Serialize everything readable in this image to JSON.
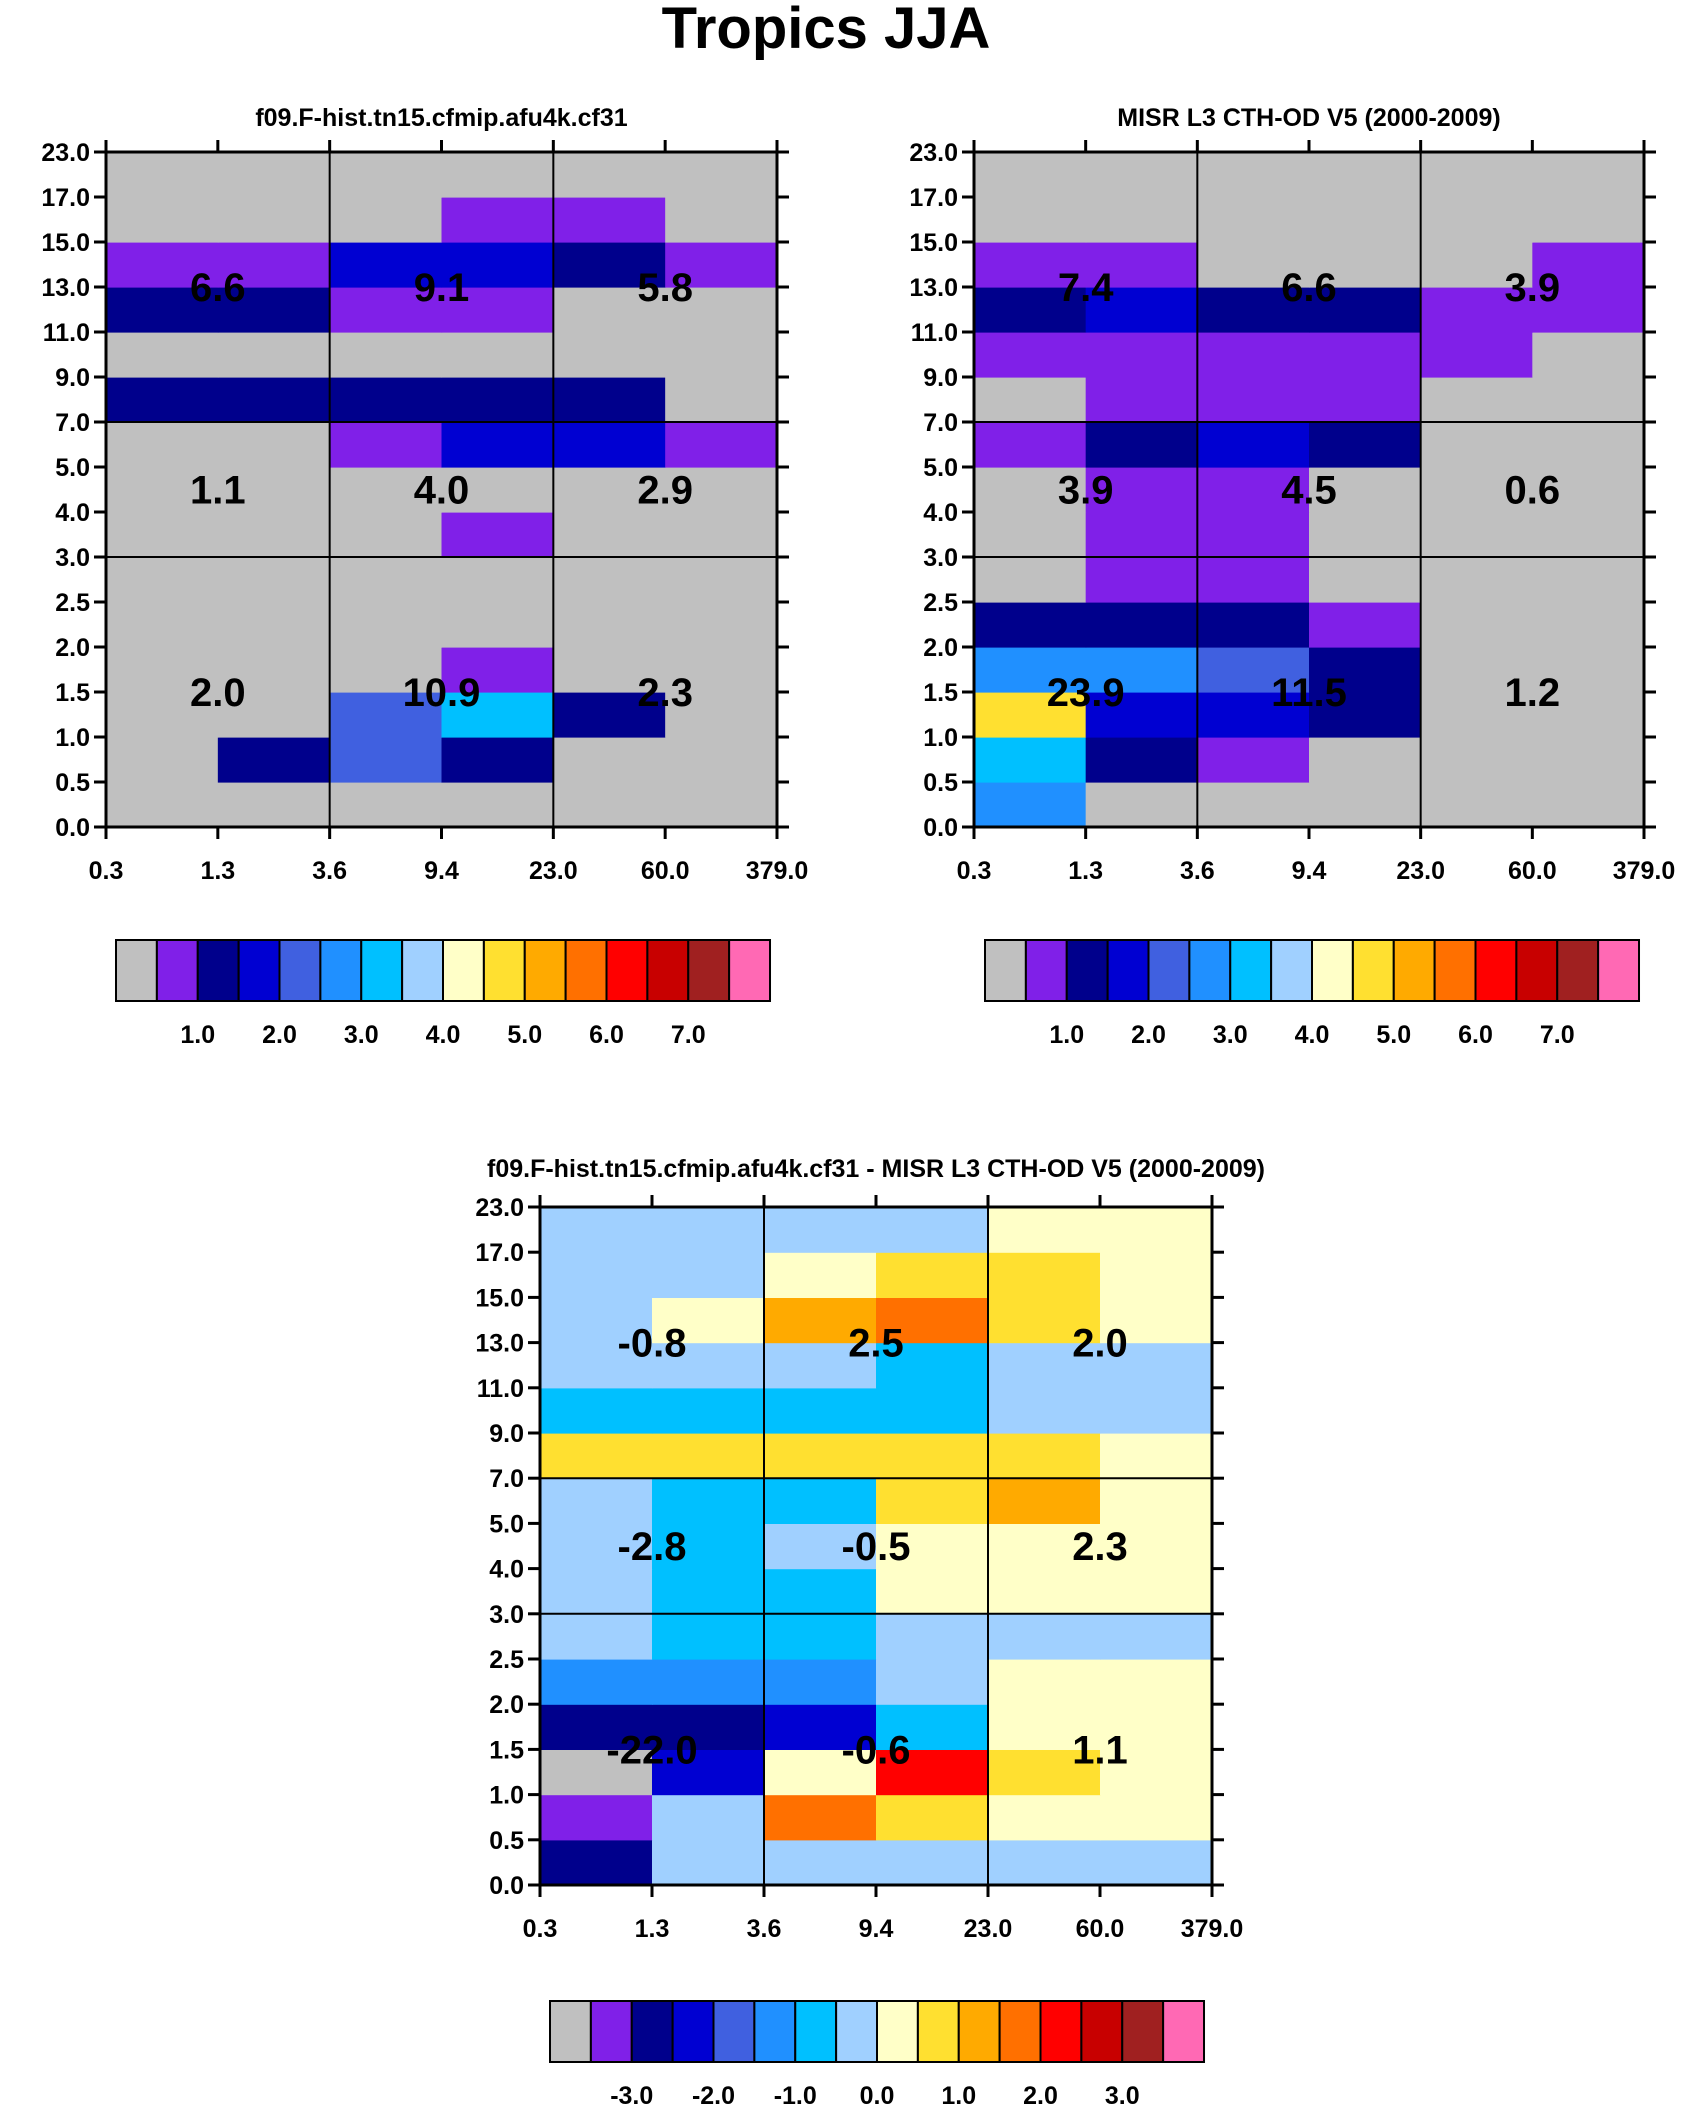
{
  "figure_title": "Tropics JJA",
  "colors": {
    "scale": [
      "#c0c0c0",
      "#8020e8",
      "#00008c",
      "#0000d2",
      "#4060e0",
      "#2090ff",
      "#00c0ff",
      "#a0d0ff",
      "#ffffc8",
      "#ffe030",
      "#ffaa00",
      "#ff7000",
      "#ff0000",
      "#c80000",
      "#a02020",
      "#ff69b4"
    ]
  },
  "chart_data": [
    {
      "type": "heatmap",
      "id": "model",
      "title": "f09.F-hist.tn15.cfmip.afu4k.cf31",
      "x_tick_labels": [
        "0.3",
        "1.3",
        "3.6",
        "9.4",
        "23.0",
        "60.0",
        "379.0"
      ],
      "y_tick_labels": [
        "0.0",
        "0.5",
        "1.0",
        "1.5",
        "2.0",
        "2.5",
        "3.0",
        "4.0",
        "5.0",
        "7.0",
        "9.0",
        "11.0",
        "13.0",
        "15.0",
        "17.0",
        "23.0"
      ],
      "cells_bottom_to_top": [
        [
          0,
          0,
          0,
          0,
          0,
          0
        ],
        [
          0,
          2,
          4,
          2,
          0,
          0
        ],
        [
          0,
          0,
          4,
          6,
          2,
          0
        ],
        [
          0,
          0,
          0,
          1,
          0,
          0
        ],
        [
          0,
          0,
          0,
          0,
          0,
          0
        ],
        [
          0,
          0,
          0,
          0,
          0,
          0
        ],
        [
          0,
          0,
          0,
          1,
          0,
          0
        ],
        [
          0,
          0,
          0,
          0,
          0,
          0
        ],
        [
          0,
          0,
          1,
          3,
          3,
          1
        ],
        [
          2,
          2,
          2,
          2,
          2,
          0
        ],
        [
          0,
          0,
          0,
          0,
          0,
          0
        ],
        [
          2,
          2,
          1,
          1,
          0,
          0
        ],
        [
          1,
          1,
          3,
          3,
          2,
          1
        ],
        [
          0,
          0,
          0,
          1,
          1,
          0
        ],
        [
          0,
          0,
          0,
          0,
          0,
          0
        ]
      ],
      "block_labels": {
        "top": [
          "6.6",
          "9.1",
          "5.8"
        ],
        "middle": [
          "1.1",
          "4.0",
          "2.9"
        ],
        "bottom": [
          "2.0",
          "10.9",
          "2.3"
        ]
      },
      "colorbar": {
        "labels": [
          "1.0",
          "2.0",
          "3.0",
          "4.0",
          "5.0",
          "6.0",
          "7.0"
        ]
      }
    },
    {
      "type": "heatmap",
      "id": "obs",
      "title": "MISR L3 CTH-OD V5 (2000-2009)",
      "x_tick_labels": [
        "0.3",
        "1.3",
        "3.6",
        "9.4",
        "23.0",
        "60.0",
        "379.0"
      ],
      "y_tick_labels": [
        "0.0",
        "0.5",
        "1.0",
        "1.5",
        "2.0",
        "2.5",
        "3.0",
        "4.0",
        "5.0",
        "7.0",
        "9.0",
        "11.0",
        "13.0",
        "15.0",
        "17.0",
        "23.0"
      ],
      "cells_bottom_to_top": [
        [
          5,
          0,
          0,
          0,
          0,
          0
        ],
        [
          6,
          2,
          1,
          0,
          0,
          0
        ],
        [
          9,
          3,
          3,
          2,
          0,
          0
        ],
        [
          5,
          5,
          4,
          2,
          0,
          0
        ],
        [
          2,
          2,
          2,
          1,
          0,
          0
        ],
        [
          0,
          1,
          1,
          0,
          0,
          0
        ],
        [
          0,
          1,
          1,
          0,
          0,
          0
        ],
        [
          0,
          1,
          1,
          0,
          0,
          0
        ],
        [
          1,
          2,
          3,
          2,
          0,
          0
        ],
        [
          0,
          1,
          1,
          1,
          0,
          0
        ],
        [
          1,
          1,
          1,
          1,
          1,
          0
        ],
        [
          2,
          3,
          2,
          2,
          1,
          1
        ],
        [
          1,
          1,
          0,
          0,
          0,
          1
        ],
        [
          0,
          0,
          0,
          0,
          0,
          0
        ],
        [
          0,
          0,
          0,
          0,
          0,
          0
        ]
      ],
      "block_labels": {
        "top": [
          "7.4",
          "6.6",
          "3.9"
        ],
        "middle": [
          "3.9",
          "4.5",
          "0.6"
        ],
        "bottom": [
          "23.9",
          "11.5",
          "1.2"
        ]
      },
      "colorbar": {
        "labels": [
          "1.0",
          "2.0",
          "3.0",
          "4.0",
          "5.0",
          "6.0",
          "7.0"
        ]
      }
    },
    {
      "type": "heatmap",
      "id": "diff",
      "title": "f09.F-hist.tn15.cfmip.afu4k.cf31 - MISR L3 CTH-OD V5 (2000-2009)",
      "x_tick_labels": [
        "0.3",
        "1.3",
        "3.6",
        "9.4",
        "23.0",
        "60.0",
        "379.0"
      ],
      "y_tick_labels": [
        "0.0",
        "0.5",
        "1.0",
        "1.5",
        "2.0",
        "2.5",
        "3.0",
        "4.0",
        "5.0",
        "7.0",
        "9.0",
        "11.0",
        "13.0",
        "15.0",
        "17.0",
        "23.0"
      ],
      "cells_bottom_to_top": [
        [
          2,
          7,
          7,
          7,
          7,
          7
        ],
        [
          1,
          7,
          11,
          9,
          8,
          8
        ],
        [
          0,
          3,
          8,
          12,
          9,
          8
        ],
        [
          2,
          2,
          3,
          6,
          8,
          8
        ],
        [
          5,
          5,
          5,
          7,
          8,
          8
        ],
        [
          7,
          6,
          6,
          7,
          7,
          7
        ],
        [
          7,
          6,
          6,
          8,
          8,
          8
        ],
        [
          7,
          6,
          7,
          8,
          8,
          8
        ],
        [
          7,
          6,
          6,
          9,
          10,
          8
        ],
        [
          9,
          9,
          9,
          9,
          9,
          8
        ],
        [
          6,
          6,
          6,
          6,
          7,
          7
        ],
        [
          7,
          7,
          7,
          6,
          7,
          7
        ],
        [
          7,
          8,
          10,
          11,
          9,
          8
        ],
        [
          7,
          7,
          8,
          9,
          9,
          8
        ],
        [
          7,
          7,
          7,
          7,
          8,
          8
        ]
      ],
      "block_labels": {
        "top": [
          "-0.8",
          "2.5",
          "2.0"
        ],
        "middle": [
          "-2.8",
          "-0.5",
          "2.3"
        ],
        "bottom": [
          "-22.0",
          "-0.6",
          "1.1"
        ]
      },
      "colorbar": {
        "labels": [
          "-3.0",
          "-2.0",
          "-1.0",
          "0.0",
          "1.0",
          "2.0",
          "3.0"
        ]
      }
    }
  ]
}
